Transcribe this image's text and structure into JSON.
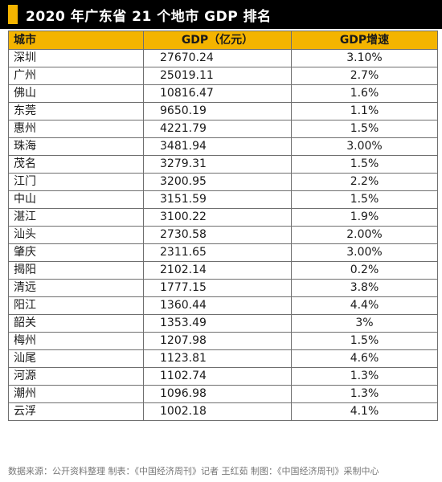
{
  "title": "2020 年广东省 21 个地市 GDP 排名",
  "colors": {
    "accent": "#f4b400",
    "title_bg": "#000000",
    "border": "#6f6f6f"
  },
  "table": {
    "headers": [
      "城市",
      "GDP（亿元）",
      "GDP增速"
    ],
    "rows": [
      {
        "city": "深圳",
        "gdp": "27670.24",
        "growth": "3.10%"
      },
      {
        "city": "广州",
        "gdp": "25019.11",
        "growth": "2.7%"
      },
      {
        "city": "佛山",
        "gdp": "10816.47",
        "growth": "1.6%"
      },
      {
        "city": "东莞",
        "gdp": "9650.19",
        "growth": "1.1%"
      },
      {
        "city": "惠州",
        "gdp": "4221.79",
        "growth": "1.5%"
      },
      {
        "city": "珠海",
        "gdp": "3481.94",
        "growth": "3.00%"
      },
      {
        "city": "茂名",
        "gdp": "3279.31",
        "growth": "1.5%"
      },
      {
        "city": "江门",
        "gdp": "3200.95",
        "growth": "2.2%"
      },
      {
        "city": "中山",
        "gdp": "3151.59",
        "growth": "1.5%"
      },
      {
        "city": "湛江",
        "gdp": "3100.22",
        "growth": "1.9%"
      },
      {
        "city": "汕头",
        "gdp": "2730.58",
        "growth": "2.00%"
      },
      {
        "city": "肇庆",
        "gdp": "2311.65",
        "growth": "3.00%"
      },
      {
        "city": "揭阳",
        "gdp": "2102.14",
        "growth": "0.2%"
      },
      {
        "city": "清远",
        "gdp": "1777.15",
        "growth": "3.8%"
      },
      {
        "city": "阳江",
        "gdp": "1360.44",
        "growth": "4.4%"
      },
      {
        "city": "韶关",
        "gdp": "1353.49",
        "growth": "3%"
      },
      {
        "city": "梅州",
        "gdp": "1207.98",
        "growth": "1.5%"
      },
      {
        "city": "汕尾",
        "gdp": "1123.81",
        "growth": "4.6%"
      },
      {
        "city": "河源",
        "gdp": "1102.74",
        "growth": "1.3%"
      },
      {
        "city": "潮州",
        "gdp": "1096.98",
        "growth": "1.3%"
      },
      {
        "city": "云浮",
        "gdp": "1002.18",
        "growth": "4.1%"
      }
    ]
  },
  "footer": "数据来源：公开资料整理    制表：《中国经济周刊》记者 王红茹    制图：《中国经济周刊》采制中心"
}
